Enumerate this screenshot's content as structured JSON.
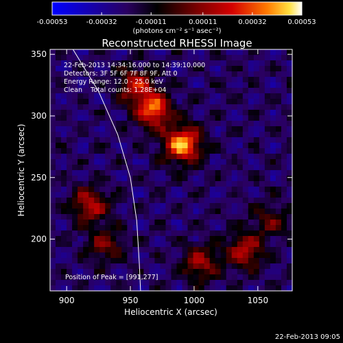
{
  "colorbar": {
    "tick_labels": [
      "-0.00053",
      "-0.00032",
      "-0.00011",
      "0.00011",
      "0.00032",
      "0.00053"
    ],
    "tick_values": [
      -0.00053,
      -0.00032,
      -0.00011,
      0.00011,
      0.00032,
      0.00053
    ],
    "range": [
      -0.00053,
      0.00053
    ],
    "units_label": "(photons cm⁻² s⁻¹ asec⁻²)",
    "colors": [
      "#0000ff",
      "#2a0060",
      "#000000",
      "#7a0000",
      "#d40000",
      "#ff7a00",
      "#ffe040",
      "#ffffff"
    ]
  },
  "chart_data": {
    "type": "heatmap",
    "title": "Reconstructed RHESSI Image",
    "xlabel": "Heliocentric X (arcsec)",
    "ylabel": "Heliocentric Y (arcsec)",
    "xlim": [
      887,
      1077
    ],
    "ylim": [
      158,
      354
    ],
    "x_ticks": [
      900,
      950,
      1000,
      1050
    ],
    "y_ticks": [
      200,
      250,
      300,
      350
    ],
    "annotations": [
      "22-Feb-2013 14:34:16.000 to 14:39:10.000",
      "Detectors: 3F 5F 6F 7F 8F 9F, Att 0",
      "Energy Range: 12.0 - 25.0 keV",
      "Clean    Total counts: 1.28E+04"
    ],
    "peak_label": "Position of Peak = [991,277]",
    "peak": [
      991,
      277
    ],
    "sources": [
      {
        "x": 991,
        "y": 277,
        "intensity": 1.0
      },
      {
        "x": 968,
        "y": 305,
        "intensity": 0.85
      },
      {
        "x": 955,
        "y": 325,
        "intensity": 0.6
      },
      {
        "x": 918,
        "y": 228,
        "intensity": 0.6
      },
      {
        "x": 1040,
        "y": 190,
        "intensity": 0.6
      },
      {
        "x": 1005,
        "y": 180,
        "intensity": 0.5
      },
      {
        "x": 930,
        "y": 195,
        "intensity": 0.4
      },
      {
        "x": 1060,
        "y": 215,
        "intensity": 0.35
      }
    ],
    "limb_curve": [
      [
        905,
        354
      ],
      [
        925,
        320
      ],
      [
        940,
        285
      ],
      [
        950,
        250
      ],
      [
        955,
        215
      ],
      [
        957,
        180
      ],
      [
        958,
        158
      ]
    ]
  },
  "footer_date": "22-Feb-2013 09:05"
}
